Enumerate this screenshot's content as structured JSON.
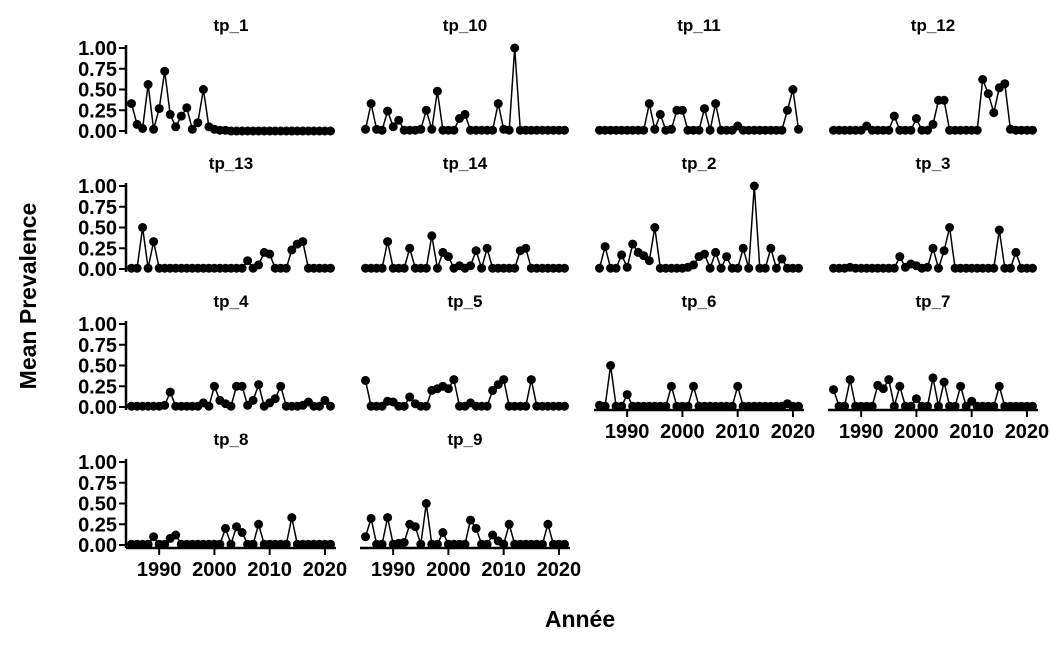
{
  "chart_data": {
    "type": "line",
    "xlabel": "Année",
    "ylabel": "Mean Prevalence",
    "xlim": [
      1984,
      2022
    ],
    "ylim": [
      0,
      1
    ],
    "x_ticks": [
      "1990",
      "2000",
      "2010",
      "2020"
    ],
    "y_ticks": [
      "0.00",
      "0.25",
      "0.50",
      "0.75",
      "1.00"
    ],
    "color": "#000000",
    "grid": false,
    "years": [
      1985,
      1986,
      1987,
      1988,
      1989,
      1990,
      1991,
      1992,
      1993,
      1994,
      1995,
      1996,
      1997,
      1998,
      1999,
      2000,
      2001,
      2002,
      2003,
      2004,
      2005,
      2006,
      2007,
      2008,
      2009,
      2010,
      2011,
      2012,
      2013,
      2014,
      2015,
      2016,
      2017,
      2018,
      2019,
      2020,
      2021
    ],
    "panels": [
      {
        "name": "tp_1",
        "values": [
          0.33,
          0.08,
          0.03,
          0.56,
          0.02,
          0.27,
          0.72,
          0.2,
          0.05,
          0.18,
          0.28,
          0.02,
          0.1,
          0.5,
          0.05,
          0.02,
          0.01,
          0.01,
          0,
          0,
          0,
          0,
          0,
          0,
          0,
          0,
          0,
          0,
          0,
          0,
          0,
          0,
          0,
          0,
          0,
          0,
          0
        ]
      },
      {
        "name": "tp_10",
        "values": [
          0.02,
          0.33,
          0.02,
          0.01,
          0.24,
          0.05,
          0.13,
          0.01,
          0.01,
          0.01,
          0.02,
          0.25,
          0.02,
          0.48,
          0.01,
          0.01,
          0.01,
          0.15,
          0.2,
          0.01,
          0.01,
          0.01,
          0.01,
          0.01,
          0.33,
          0.02,
          0.01,
          1.0,
          0.01,
          0.01,
          0.01,
          0.01,
          0.01,
          0.01,
          0.01,
          0.01,
          0.01
        ]
      },
      {
        "name": "tp_11",
        "values": [
          0.01,
          0.01,
          0.01,
          0.01,
          0.01,
          0.01,
          0.01,
          0.01,
          0.01,
          0.33,
          0.02,
          0.2,
          0.01,
          0.02,
          0.25,
          0.25,
          0.01,
          0.01,
          0.01,
          0.27,
          0.01,
          0.33,
          0.01,
          0.01,
          0.01,
          0.06,
          0.01,
          0.01,
          0.01,
          0.01,
          0.01,
          0.01,
          0.01,
          0.01,
          0.25,
          0.5,
          0.02
        ]
      },
      {
        "name": "tp_12",
        "values": [
          0.01,
          0.01,
          0.01,
          0.01,
          0.01,
          0.01,
          0.06,
          0.01,
          0.01,
          0.01,
          0.01,
          0.18,
          0.01,
          0.01,
          0.01,
          0.15,
          0.01,
          0.01,
          0.08,
          0.37,
          0.37,
          0.01,
          0.01,
          0.01,
          0.01,
          0.01,
          0.01,
          0.62,
          0.45,
          0.22,
          0.52,
          0.57,
          0.02,
          0.01,
          0.01,
          0.01,
          0.01
        ]
      },
      {
        "name": "tp_13",
        "values": [
          0.01,
          0.01,
          0.5,
          0.01,
          0.33,
          0.01,
          0.01,
          0.01,
          0.01,
          0.01,
          0.01,
          0.01,
          0.01,
          0.01,
          0.01,
          0.01,
          0.01,
          0.01,
          0.01,
          0.01,
          0.01,
          0.1,
          0.01,
          0.05,
          0.2,
          0.18,
          0.01,
          0.01,
          0.01,
          0.23,
          0.3,
          0.33,
          0.01,
          0.01,
          0.01,
          0.01,
          0.01
        ]
      },
      {
        "name": "tp_14",
        "values": [
          0.01,
          0.01,
          0.01,
          0.01,
          0.33,
          0.01,
          0.01,
          0.01,
          0.25,
          0.01,
          0.01,
          0.01,
          0.4,
          0.01,
          0.2,
          0.15,
          0.01,
          0.04,
          0.01,
          0.04,
          0.22,
          0.01,
          0.25,
          0.01,
          0.01,
          0.01,
          0.01,
          0.01,
          0.22,
          0.25,
          0.01,
          0.01,
          0.01,
          0.01,
          0.01,
          0.01,
          0.01
        ]
      },
      {
        "name": "tp_2",
        "values": [
          0.01,
          0.27,
          0.01,
          0.01,
          0.17,
          0.02,
          0.3,
          0.2,
          0.16,
          0.1,
          0.5,
          0.01,
          0.01,
          0.01,
          0.01,
          0.01,
          0.02,
          0.05,
          0.15,
          0.18,
          0.01,
          0.2,
          0.01,
          0.15,
          0.01,
          0.01,
          0.25,
          0.01,
          1.0,
          0.01,
          0.01,
          0.25,
          0.01,
          0.12,
          0.01,
          0.01,
          0.01
        ]
      },
      {
        "name": "tp_3",
        "values": [
          0.01,
          0.01,
          0.01,
          0.02,
          0.01,
          0.01,
          0.01,
          0.01,
          0.01,
          0.01,
          0.01,
          0.01,
          0.15,
          0.02,
          0.06,
          0.04,
          0.01,
          0.02,
          0.25,
          0.01,
          0.22,
          0.5,
          0.01,
          0.01,
          0.01,
          0.01,
          0.01,
          0.01,
          0.01,
          0.01,
          0.47,
          0.01,
          0.01,
          0.2,
          0.01,
          0.01,
          0.01
        ]
      },
      {
        "name": "tp_4",
        "values": [
          0.01,
          0.01,
          0.01,
          0.01,
          0.01,
          0.01,
          0.02,
          0.18,
          0.01,
          0.01,
          0.01,
          0.01,
          0.01,
          0.05,
          0.01,
          0.25,
          0.08,
          0.04,
          0.01,
          0.25,
          0.25,
          0.02,
          0.08,
          0.27,
          0.01,
          0.05,
          0.1,
          0.25,
          0.01,
          0.01,
          0.01,
          0.02,
          0.06,
          0.01,
          0.01,
          0.08,
          0.01
        ]
      },
      {
        "name": "tp_5",
        "values": [
          0.32,
          0.01,
          0.01,
          0.01,
          0.07,
          0.06,
          0.01,
          0.01,
          0.12,
          0.04,
          0.01,
          0.01,
          0.2,
          0.22,
          0.25,
          0.22,
          0.33,
          0.01,
          0.01,
          0.05,
          0.01,
          0.01,
          0.01,
          0.2,
          0.27,
          0.33,
          0.01,
          0.01,
          0.01,
          0.01,
          0.33,
          0.01,
          0.01,
          0.01,
          0.01,
          0.01,
          0.01
        ]
      },
      {
        "name": "tp_6",
        "values": [
          0.02,
          0.01,
          0.5,
          0.01,
          0.01,
          0.15,
          0.01,
          0.01,
          0.01,
          0.01,
          0.01,
          0.01,
          0.01,
          0.25,
          0.01,
          0.01,
          0.01,
          0.25,
          0.01,
          0.01,
          0.01,
          0.01,
          0.01,
          0.01,
          0.01,
          0.25,
          0.01,
          0.01,
          0.01,
          0.01,
          0.01,
          0.01,
          0.01,
          0.01,
          0.04,
          0.01,
          0.01
        ]
      },
      {
        "name": "tp_7",
        "values": [
          0.21,
          0.01,
          0.01,
          0.33,
          0.01,
          0.01,
          0.01,
          0.01,
          0.26,
          0.22,
          0.33,
          0.01,
          0.25,
          0.01,
          0.01,
          0.1,
          0.01,
          0.01,
          0.35,
          0.01,
          0.3,
          0.01,
          0.01,
          0.25,
          0.01,
          0.07,
          0.01,
          0.01,
          0.01,
          0.01,
          0.25,
          0.01,
          0.01,
          0.01,
          0.01,
          0.01,
          0.01
        ]
      },
      {
        "name": "tp_8",
        "values": [
          0.01,
          0.01,
          0.01,
          0.01,
          0.1,
          0.01,
          0.01,
          0.08,
          0.12,
          0.01,
          0.01,
          0.01,
          0.01,
          0.01,
          0.01,
          0.01,
          0.01,
          0.2,
          0.01,
          0.22,
          0.15,
          0.01,
          0.01,
          0.25,
          0.01,
          0.01,
          0.01,
          0.01,
          0.01,
          0.33,
          0.01,
          0.01,
          0.01,
          0.01,
          0.01,
          0.01,
          0.01
        ]
      },
      {
        "name": "tp_9",
        "values": [
          0.1,
          0.32,
          0.01,
          0.01,
          0.33,
          0.01,
          0.02,
          0.03,
          0.25,
          0.22,
          0.01,
          0.5,
          0.01,
          0.01,
          0.15,
          0.01,
          0.01,
          0.01,
          0.01,
          0.3,
          0.2,
          0.01,
          0.01,
          0.12,
          0.05,
          0.01,
          0.25,
          0.01,
          0.01,
          0.01,
          0.01,
          0.01,
          0.01,
          0.25,
          0.01,
          0.01,
          0.01
        ]
      }
    ]
  }
}
